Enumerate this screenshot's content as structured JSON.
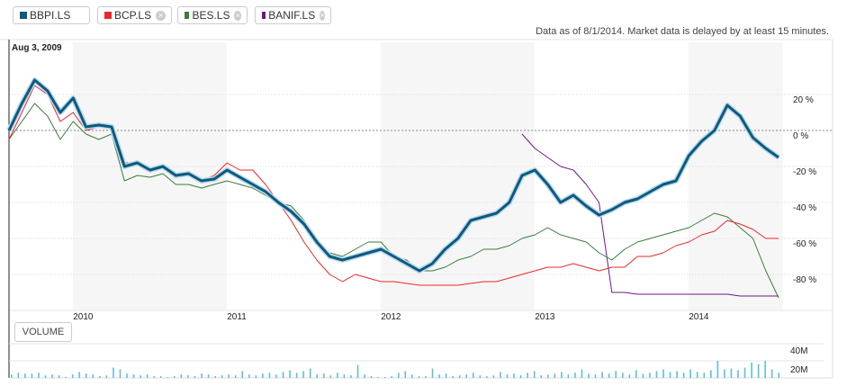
{
  "legend": [
    {
      "label": "BBPI.LS",
      "color": "#0c5a80",
      "removable": false
    },
    {
      "label": "BCP.LS",
      "color": "#e8282b",
      "removable": true
    },
    {
      "label": "BES.LS",
      "color": "#3a7d3a",
      "removable": true
    },
    {
      "label": "BANIF.LS",
      "color": "#6e1a86",
      "removable": true
    }
  ],
  "remove_icon": "circle-x-icon",
  "note": "Data as of 8/1/2014. Market data is delayed by at least 15 minutes.",
  "start_label": "Aug 3, 2009",
  "volume_button": "VOLUME",
  "chart_data": {
    "type": "line",
    "x_start": "2009-08",
    "x_step": "1 month",
    "x_ticks": [
      "2010",
      "2011",
      "2012",
      "2013",
      "2014"
    ],
    "y_ticks": [
      "20 %",
      "0 %",
      "-20 %",
      "-40 %",
      "-60 %",
      "-80 %"
    ],
    "y_tick_values": [
      20,
      0,
      -20,
      -40,
      -60,
      -80
    ],
    "ylim": [
      -100,
      32
    ],
    "grid": true,
    "series": [
      {
        "name": "BBPI.LS",
        "color": "#0c5a80",
        "start_index": 0,
        "values": [
          0,
          15,
          28,
          22,
          10,
          18,
          2,
          3,
          2,
          -20,
          -18,
          -22,
          -20,
          -25,
          -24,
          -28,
          -27,
          -22,
          -26,
          -30,
          -34,
          -40,
          -45,
          -52,
          -62,
          -70,
          -72,
          -70,
          -68,
          -66,
          -70,
          -74,
          -78,
          -74,
          -66,
          -60,
          -50,
          -48,
          -46,
          -40,
          -25,
          -22,
          -30,
          -40,
          -36,
          -42,
          -47,
          -44,
          -40,
          -38,
          -34,
          -30,
          -28,
          -14,
          -6,
          0,
          14,
          8,
          -4,
          -10,
          -15
        ]
      },
      {
        "name": "BCP.LS",
        "color": "#e8282b",
        "start_index": 0,
        "values": [
          -5,
          10,
          25,
          20,
          5,
          10,
          0,
          2,
          2,
          -18,
          -18,
          -22,
          -20,
          -24,
          -24,
          -28,
          -25,
          -18,
          -22,
          -22,
          -30,
          -40,
          -50,
          -62,
          -72,
          -80,
          -84,
          -80,
          -82,
          -84,
          -84,
          -85,
          -86,
          -86,
          -86,
          -86,
          -85,
          -84,
          -84,
          -82,
          -80,
          -78,
          -76,
          -76,
          -74,
          -76,
          -78,
          -76,
          -76,
          -70,
          -70,
          -68,
          -64,
          -62,
          -58,
          -56,
          -50,
          -52,
          -55,
          -60,
          -60
        ]
      },
      {
        "name": "BES.LS",
        "color": "#3a7d3a",
        "start_index": 0,
        "values": [
          -5,
          5,
          15,
          8,
          -5,
          5,
          -2,
          -5,
          -2,
          -28,
          -25,
          -26,
          -24,
          -30,
          -30,
          -32,
          -30,
          -28,
          -30,
          -32,
          -36,
          -40,
          -42,
          -50,
          -62,
          -68,
          -70,
          -66,
          -62,
          -62,
          -70,
          -72,
          -78,
          -78,
          -76,
          -72,
          -70,
          -66,
          -66,
          -64,
          -60,
          -58,
          -54,
          -58,
          -60,
          -62,
          -68,
          -72,
          -66,
          -62,
          -60,
          -58,
          -56,
          -54,
          -50,
          -46,
          -48,
          -54,
          -60,
          -78,
          -93
        ]
      },
      {
        "name": "BANIF.LS",
        "color": "#6e1a86",
        "start_index": 40,
        "values": [
          -2,
          -10,
          -15,
          -20,
          -22,
          -30,
          -40,
          -90,
          -90,
          -91,
          -91,
          -91,
          -91,
          -91,
          -91,
          -91,
          -91,
          -92,
          -92,
          -92,
          -92
        ]
      }
    ],
    "volume": {
      "y_ticks": [
        "40M",
        "20M"
      ],
      "y_tick_values": [
        40,
        20
      ],
      "unit": "M",
      "values": [
        4,
        6,
        5,
        5,
        6,
        3,
        4,
        3,
        1,
        4,
        7,
        5,
        4,
        2,
        3,
        12,
        10,
        5,
        4,
        3,
        4,
        2,
        2,
        1,
        2,
        4,
        3,
        2,
        5,
        4,
        2,
        3,
        4,
        3,
        8,
        4,
        3,
        5,
        6,
        4,
        7,
        9,
        6,
        8,
        11,
        4,
        5,
        3,
        6,
        4,
        3,
        15,
        4,
        2,
        1,
        1,
        2,
        6,
        8,
        4,
        2,
        2,
        11,
        4,
        5,
        2,
        3,
        4,
        6,
        3,
        2,
        3,
        7,
        4,
        5,
        3,
        6,
        8,
        3,
        4,
        5,
        7,
        4,
        6,
        10,
        5,
        4,
        7,
        5,
        8,
        6,
        4,
        9,
        5,
        6,
        8,
        10,
        7,
        8,
        6,
        10,
        7,
        6,
        9,
        20,
        10,
        11,
        9,
        12,
        18,
        16,
        20,
        10,
        6
      ]
    }
  }
}
